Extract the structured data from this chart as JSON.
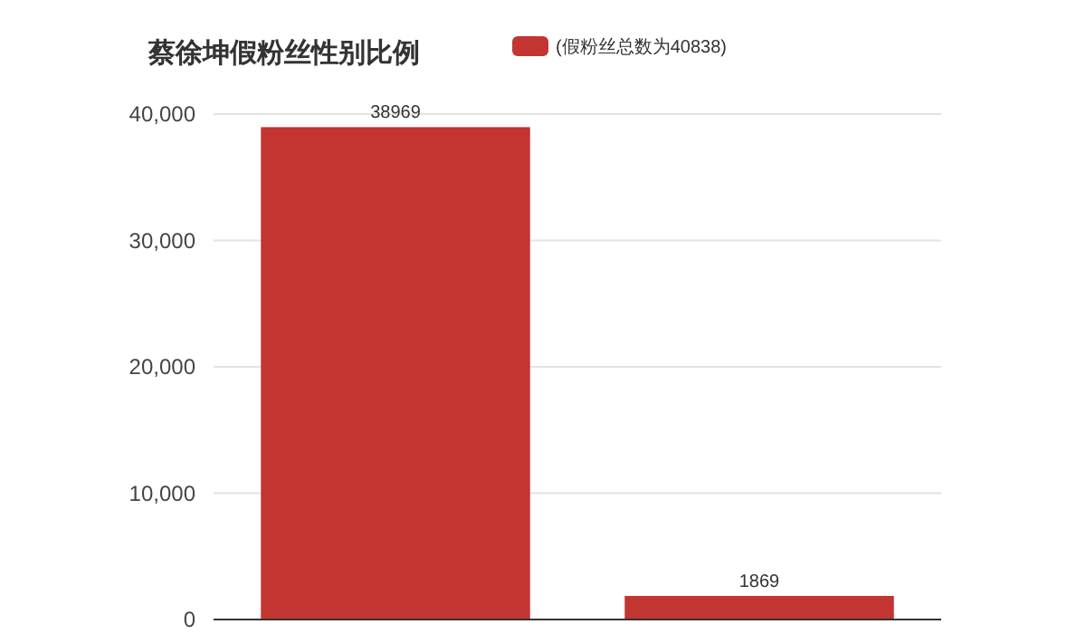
{
  "chart_data": {
    "type": "bar",
    "title": "蔡徐坤假粉丝性别比例",
    "categories": [
      null,
      null
    ],
    "series": [
      {
        "name": "(假粉丝总数为40838)",
        "color": "#c23531",
        "values": [
          38969,
          1869
        ]
      }
    ],
    "ylim": [
      0,
      40000
    ],
    "yticks": [
      {
        "value": 0,
        "label": "0"
      },
      {
        "value": 10000,
        "label": "10,000"
      },
      {
        "value": 20000,
        "label": "20,000"
      },
      {
        "value": 30000,
        "label": "30,000"
      },
      {
        "value": 40000,
        "label": "40,000"
      }
    ],
    "grid": "y",
    "legend": "top",
    "data_labels": true
  }
}
